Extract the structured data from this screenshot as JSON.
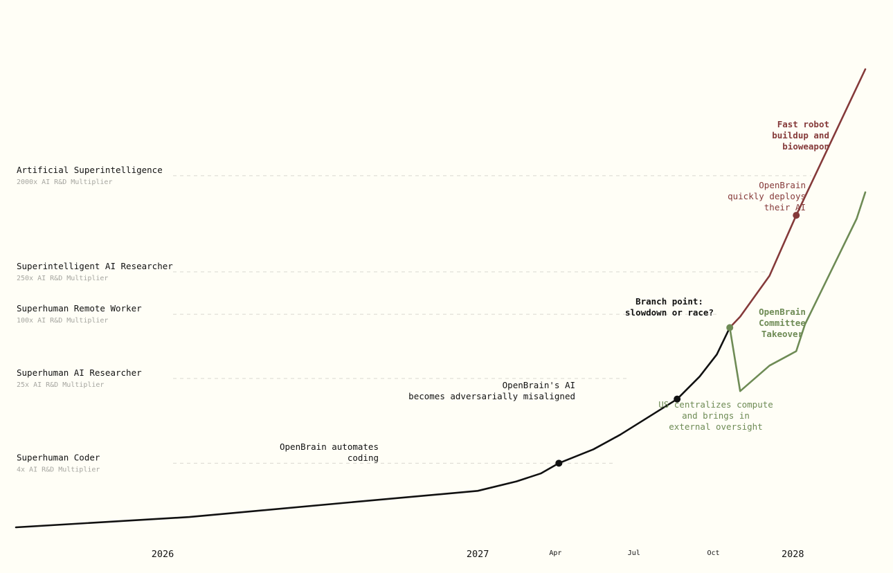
{
  "chart_data": {
    "type": "line",
    "title": "",
    "xlabel": "",
    "ylabel": "",
    "x_ticks": [
      {
        "label": "2026",
        "kind": "year",
        "date": "2026-01-01"
      },
      {
        "label": "2027",
        "kind": "year",
        "date": "2027-01-01"
      },
      {
        "label": "Apr",
        "kind": "month",
        "date": "2027-04-01"
      },
      {
        "label": "Jul",
        "kind": "month",
        "date": "2027-07-01"
      },
      {
        "label": "Oct",
        "kind": "month",
        "date": "2027-10-01"
      },
      {
        "label": "2028",
        "kind": "year",
        "date": "2028-01-01"
      }
    ],
    "x_range": [
      "2025-07-15",
      "2028-03-25"
    ],
    "y_scale": "log",
    "y_unit": "AI R&D Multiplier",
    "y_range": [
      1,
      20000
    ],
    "milestones": [
      {
        "label": "Artificial Superintelligence",
        "sublabel": "2000x AI R&D Multiplier",
        "value": 2000
      },
      {
        "label": "Superintelligent AI Researcher",
        "sublabel": "250x AI R&D Multiplier",
        "value": 250
      },
      {
        "label": "Superhuman Remote Worker",
        "sublabel": "100x AI R&D Multiplier",
        "value": 100
      },
      {
        "label": "Superhuman AI Researcher",
        "sublabel": "25x AI R&D Multiplier",
        "value": 25
      },
      {
        "label": "Superhuman Coder",
        "sublabel": "4x AI R&D Multiplier",
        "value": 4
      }
    ],
    "series": [
      {
        "id": "shared",
        "color": "#111111",
        "points": [
          [
            "2025-07-15",
            1.0
          ],
          [
            "2026-02-01",
            1.25
          ],
          [
            "2026-08-01",
            1.7
          ],
          [
            "2027-01-01",
            2.2
          ],
          [
            "2027-02-15",
            2.7
          ],
          [
            "2027-03-15",
            3.2
          ],
          [
            "2027-04-05",
            4.0
          ],
          [
            "2027-05-15",
            5.4
          ],
          [
            "2027-06-15",
            7.4
          ],
          [
            "2027-07-15",
            10.5
          ],
          [
            "2027-08-20",
            16
          ],
          [
            "2027-09-15",
            26
          ],
          [
            "2027-10-05",
            42
          ],
          [
            "2027-10-20",
            75
          ]
        ]
      },
      {
        "id": "race",
        "color": "#853a3a",
        "points": [
          [
            "2027-10-20",
            75
          ],
          [
            "2027-11-01",
            95
          ],
          [
            "2027-12-05",
            230
          ],
          [
            "2028-01-05",
            850
          ],
          [
            "2028-03-25",
            20000
          ]
        ]
      },
      {
        "id": "slowdown",
        "color": "#6e8b55",
        "points": [
          [
            "2027-10-20",
            75
          ],
          [
            "2027-11-01",
            19
          ],
          [
            "2027-12-05",
            33
          ],
          [
            "2028-01-05",
            45
          ],
          [
            "2028-01-15",
            80
          ],
          [
            "2028-03-15",
            790
          ],
          [
            "2028-03-25",
            1400
          ]
        ]
      }
    ],
    "events": [
      {
        "date": "2027-04-05",
        "value": 4.0,
        "color": "#111111",
        "lines": [
          "OpenBrain automates",
          "coding"
        ],
        "bold": false
      },
      {
        "date": "2027-08-20",
        "value": 16,
        "color": "#111111",
        "lines": [
          "OpenBrain's AI",
          "becomes adversarially misaligned"
        ],
        "bold": false
      },
      {
        "date": "2027-10-20",
        "value": 75,
        "color": "#6e8b55",
        "lines": [
          "Branch point:",
          "slowdown or race?"
        ],
        "bold": true,
        "text_color": "#111111"
      },
      {
        "date": "2028-01-05",
        "value": 850,
        "color": "#853a3a",
        "lines": [
          "OpenBrain",
          "quickly deploys",
          "their AI"
        ],
        "bold": false
      }
    ],
    "annotations": [
      {
        "lines": [
          "Fast robot",
          "buildup and",
          "bioweapon"
        ],
        "color": "#853a3a",
        "bold": true
      },
      {
        "lines": [
          "OpenBrain",
          "Committee",
          "Takeover"
        ],
        "color": "#6e8b55",
        "bold": true
      },
      {
        "lines": [
          "US centralizes compute",
          "and brings in",
          "external oversight"
        ],
        "color": "#6e8b55",
        "bold": false
      }
    ],
    "gridlines": "dashed at milestones",
    "legend": "none"
  }
}
